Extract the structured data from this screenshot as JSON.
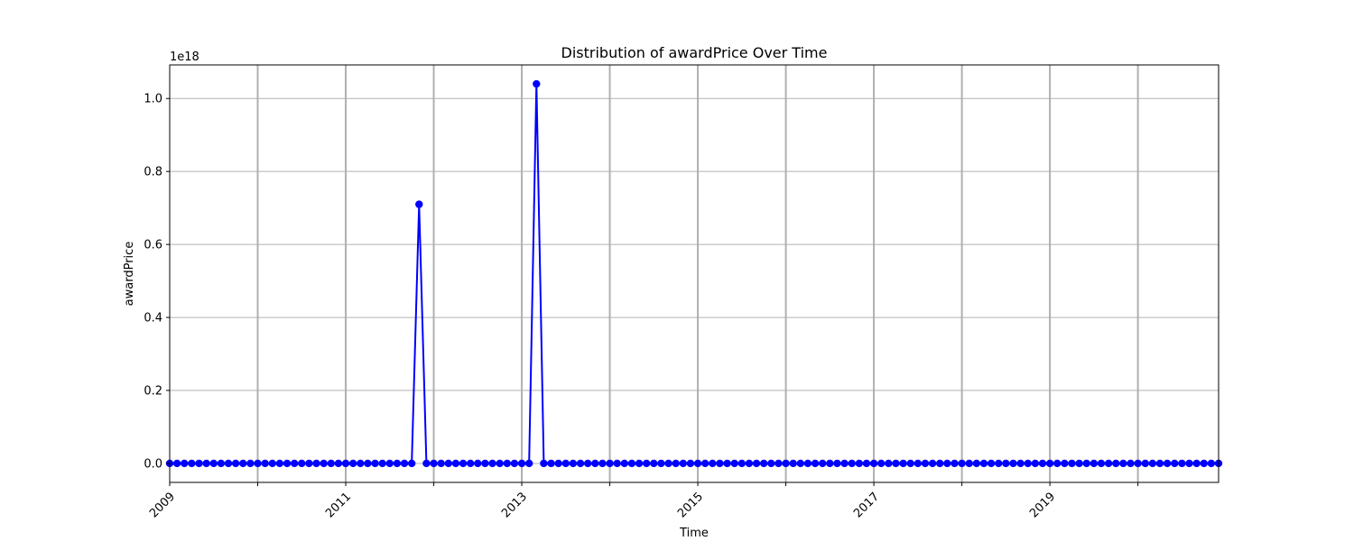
{
  "chart_data": {
    "type": "line",
    "title": "Distribution of awardPrice Over Time",
    "xlabel": "Time",
    "ylabel": "awardPrice",
    "y_offset_label": "1e18",
    "xlim": [
      "2009-01",
      "2020-12"
    ],
    "ylim": [
      -0.052,
      1.092
    ],
    "y_ticks": [
      0.0,
      0.2,
      0.4,
      0.6,
      0.8,
      1.0
    ],
    "y_tick_labels": [
      "0.0",
      "0.2",
      "0.4",
      "0.6",
      "0.8",
      "1.0"
    ],
    "x_tick_labels": [
      "2009",
      "2011",
      "2013",
      "2015",
      "2017",
      "2019"
    ],
    "x_major_ticks": [
      "2009",
      "2010",
      "2011",
      "2012",
      "2013",
      "2014",
      "2015",
      "2016",
      "2017",
      "2018",
      "2019",
      "2020"
    ],
    "grid": true,
    "series": [
      {
        "color": "#0000ff",
        "marker": "circle",
        "x": [
          "2009-01",
          "2009-02",
          "2009-03",
          "2009-04",
          "2009-05",
          "2009-06",
          "2009-07",
          "2009-08",
          "2009-09",
          "2009-10",
          "2009-11",
          "2009-12",
          "2010-01",
          "2010-02",
          "2010-03",
          "2010-04",
          "2010-05",
          "2010-06",
          "2010-07",
          "2010-08",
          "2010-09",
          "2010-10",
          "2010-11",
          "2010-12",
          "2011-01",
          "2011-02",
          "2011-03",
          "2011-04",
          "2011-05",
          "2011-06",
          "2011-07",
          "2011-08",
          "2011-09",
          "2011-10",
          "2011-11",
          "2011-12",
          "2012-01",
          "2012-02",
          "2012-03",
          "2012-04",
          "2012-05",
          "2012-06",
          "2012-07",
          "2012-08",
          "2012-09",
          "2012-10",
          "2012-11",
          "2012-12",
          "2013-01",
          "2013-02",
          "2013-03",
          "2013-04",
          "2013-05",
          "2013-06",
          "2013-07",
          "2013-08",
          "2013-09",
          "2013-10",
          "2013-11",
          "2013-12",
          "2014-01",
          "2014-02",
          "2014-03",
          "2014-04",
          "2014-05",
          "2014-06",
          "2014-07",
          "2014-08",
          "2014-09",
          "2014-10",
          "2014-11",
          "2014-12",
          "2015-01",
          "2015-02",
          "2015-03",
          "2015-04",
          "2015-05",
          "2015-06",
          "2015-07",
          "2015-08",
          "2015-09",
          "2015-10",
          "2015-11",
          "2015-12",
          "2016-01",
          "2016-02",
          "2016-03",
          "2016-04",
          "2016-05",
          "2016-06",
          "2016-07",
          "2016-08",
          "2016-09",
          "2016-10",
          "2016-11",
          "2016-12",
          "2017-01",
          "2017-02",
          "2017-03",
          "2017-04",
          "2017-05",
          "2017-06",
          "2017-07",
          "2017-08",
          "2017-09",
          "2017-10",
          "2017-11",
          "2017-12",
          "2018-01",
          "2018-02",
          "2018-03",
          "2018-04",
          "2018-05",
          "2018-06",
          "2018-07",
          "2018-08",
          "2018-09",
          "2018-10",
          "2018-11",
          "2018-12",
          "2019-01",
          "2019-02",
          "2019-03",
          "2019-04",
          "2019-05",
          "2019-06",
          "2019-07",
          "2019-08",
          "2019-09",
          "2019-10",
          "2019-11",
          "2019-12",
          "2020-01",
          "2020-02",
          "2020-03",
          "2020-04",
          "2020-05",
          "2020-06",
          "2020-07",
          "2020-08",
          "2020-09",
          "2020-10",
          "2020-11",
          "2020-12"
        ],
        "y": [
          0,
          0,
          0,
          0,
          0,
          0,
          0,
          0,
          0,
          0,
          0,
          0,
          0,
          0,
          0,
          0,
          0,
          0,
          0,
          0,
          0,
          0,
          0,
          0,
          0,
          0,
          0,
          0,
          0,
          0,
          0,
          0,
          0,
          0,
          0.71,
          0,
          0,
          0,
          0,
          0,
          0,
          0,
          0,
          0,
          0,
          0,
          0,
          0,
          0,
          0,
          1.04,
          0,
          0,
          0,
          0,
          0,
          0,
          0,
          0,
          0,
          0,
          0,
          0,
          0,
          0,
          0,
          0,
          0,
          0,
          0,
          0,
          0,
          0,
          0,
          0,
          0,
          0,
          0,
          0,
          0,
          0,
          0,
          0,
          0,
          0,
          0,
          0,
          0,
          0,
          0,
          0,
          0,
          0,
          0,
          0,
          0,
          0,
          0,
          0,
          0,
          0,
          0,
          0,
          0,
          0,
          0,
          0,
          0,
          0,
          0,
          0,
          0,
          0,
          0,
          0,
          0,
          0,
          0,
          0,
          0,
          0,
          0,
          0,
          0,
          0,
          0,
          0,
          0,
          0,
          0,
          0,
          0,
          0,
          0,
          0,
          0,
          0,
          0,
          0,
          0,
          0,
          0,
          0,
          0
        ]
      }
    ]
  }
}
